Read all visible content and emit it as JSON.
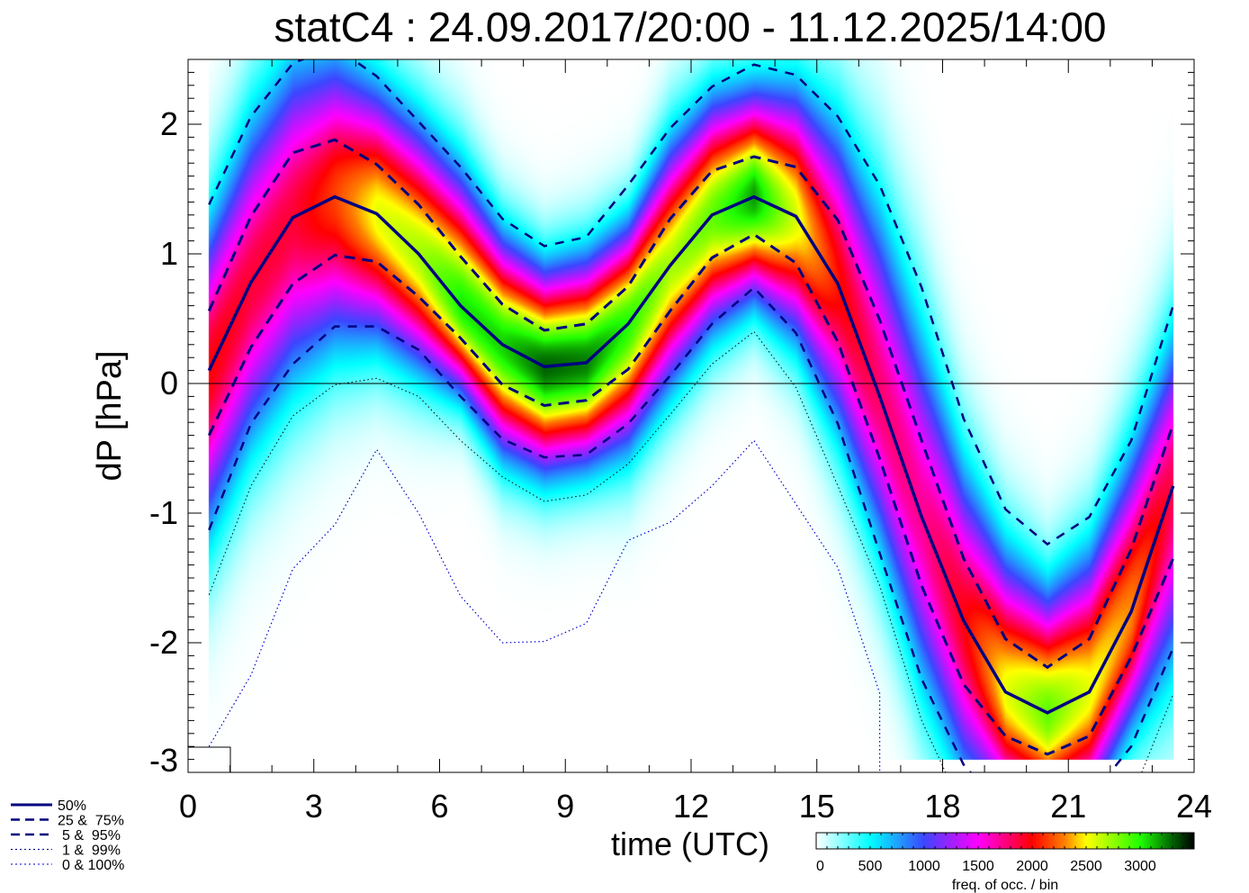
{
  "chart_data": {
    "type": "heatmap",
    "title": "statC4 : 24.09.2017/20:00 - 11.12.2025/14:00",
    "xlabel": "time (UTC)",
    "ylabel": "dP [hPa]",
    "xlim": [
      0,
      24
    ],
    "ylim": [
      -3.0,
      2.5
    ],
    "xticks": [
      "0",
      "3",
      "6",
      "9",
      "12",
      "15",
      "18",
      "21",
      "24"
    ],
    "yticks": [
      "-3",
      "-2",
      "-1",
      "0",
      "1",
      "2"
    ],
    "x": [
      0.5,
      1.5,
      2.5,
      3.5,
      4.5,
      5.5,
      6.5,
      7.5,
      8.5,
      9.5,
      10.5,
      11.5,
      12.5,
      13.5,
      14.5,
      15.5,
      16.5,
      17.5,
      18.5,
      19.5,
      20.5,
      21.5,
      22.5,
      23.5
    ],
    "series": [
      {
        "name": "50%",
        "style": "solid",
        "values": [
          0.1,
          0.78,
          1.28,
          1.44,
          1.31,
          1.0,
          0.6,
          0.3,
          0.13,
          0.16,
          0.46,
          0.91,
          1.3,
          1.44,
          1.29,
          0.77,
          -0.1,
          -1.03,
          -1.83,
          -2.38,
          -2.54,
          -2.38,
          -1.76,
          -0.79
        ]
      },
      {
        "name": "75%",
        "style": "dashed",
        "values": [
          0.56,
          1.29,
          1.78,
          1.88,
          1.69,
          1.38,
          0.98,
          0.61,
          0.41,
          0.46,
          0.75,
          1.27,
          1.64,
          1.75,
          1.67,
          1.26,
          0.49,
          -0.44,
          -1.35,
          -1.97,
          -2.19,
          -1.97,
          -1.28,
          -0.31
        ]
      },
      {
        "name": "25%",
        "style": "dashed",
        "values": [
          -0.4,
          0.28,
          0.77,
          0.99,
          0.94,
          0.67,
          0.35,
          -0.01,
          -0.17,
          -0.13,
          0.11,
          0.56,
          0.97,
          1.15,
          0.93,
          0.32,
          -0.58,
          -1.56,
          -2.32,
          -2.72,
          -2.86,
          -2.72,
          -2.11,
          -1.35
        ]
      },
      {
        "name": "95%",
        "style": "dashed-thin",
        "values": [
          1.38,
          2.06,
          2.47,
          2.6,
          2.37,
          2.02,
          1.67,
          1.27,
          1.06,
          1.13,
          1.53,
          1.97,
          2.29,
          2.46,
          2.38,
          2.06,
          1.53,
          0.74,
          -0.27,
          -0.97,
          -1.24,
          -1.03,
          -0.44,
          0.6
        ]
      },
      {
        "name": "5%",
        "style": "dashed-thin",
        "values": [
          -1.13,
          -0.31,
          0.15,
          0.44,
          0.44,
          0.26,
          -0.1,
          -0.43,
          -0.57,
          -0.55,
          -0.31,
          0.06,
          0.46,
          0.74,
          0.39,
          -0.31,
          -1.31,
          -2.28,
          -2.94,
          -3.3,
          -3.4,
          -3.2,
          -2.8,
          -2.04
        ]
      },
      {
        "name": "1%",
        "style": "dotted-black",
        "values": [
          -1.63,
          -0.79,
          -0.25,
          -0.01,
          0.04,
          -0.1,
          -0.44,
          -0.72,
          -0.91,
          -0.86,
          -0.62,
          -0.24,
          0.15,
          0.4,
          -0.03,
          -0.79,
          -1.56,
          -2.6,
          -3.3,
          -3.6,
          -3.7,
          -3.5,
          -3.2,
          -2.4
        ]
      },
      {
        "name": "0%",
        "style": "dotted-blue",
        "values": [
          -2.8,
          -2.25,
          -1.43,
          -1.09,
          -0.51,
          -1.0,
          -1.64,
          -2.0,
          -1.99,
          -1.85,
          -1.21,
          -1.07,
          -0.79,
          -0.44,
          -0.93,
          -1.42,
          -2.39,
          -3.5,
          -4,
          -4,
          -4,
          -4,
          -4,
          -4
        ]
      }
    ],
    "legend": {
      "placement": "bottom-left",
      "entries": [
        "50%",
        "25 &  75%",
        "5 &  95%",
        "1 &  99%",
        "0 & 100%"
      ]
    },
    "colorbar": {
      "title": "freq. of occ. / bin",
      "range": [
        0,
        3500
      ],
      "ticks": [
        "0",
        "500",
        "1000",
        "1500",
        "2000",
        "2500",
        "3000"
      ],
      "colors": [
        "#ffffff",
        "#00ffff",
        "#3c46ff",
        "#a020ff",
        "#ff00ff",
        "#ff0000",
        "#ff8000",
        "#ffff00",
        "#20ff00",
        "#006000",
        "#000000"
      ]
    },
    "zero_line": 0
  }
}
